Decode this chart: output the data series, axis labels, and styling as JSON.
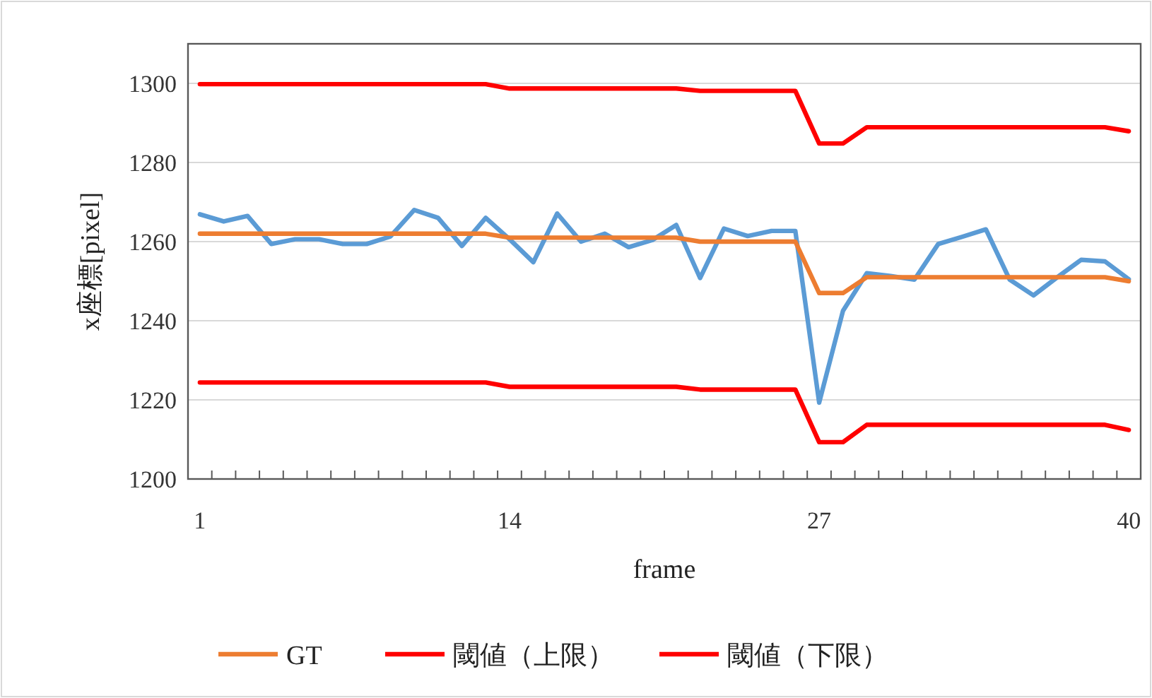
{
  "chart_data": {
    "type": "line",
    "xlabel": "frame",
    "ylabel": "x座標[pixel]",
    "categories": [
      "1",
      null,
      null,
      null,
      null,
      null,
      null,
      null,
      null,
      null,
      null,
      null,
      null,
      "14",
      null,
      null,
      null,
      null,
      null,
      null,
      null,
      null,
      null,
      null,
      null,
      null,
      "27",
      null,
      null,
      null,
      null,
      null,
      null,
      null,
      null,
      null,
      null,
      null,
      null,
      "40"
    ],
    "ylim": [
      1200,
      1310
    ],
    "yticks": [
      1200,
      1220,
      1240,
      1260,
      1280,
      1300
    ],
    "grid": "y",
    "legend": "bottom",
    "marker": "none",
    "line_style": "solid",
    "series": [
      {
        "color": "#5b9bd5",
        "values": [
          1266.9,
          1265.1,
          1266.5,
          1259.4,
          1260.6,
          1260.6,
          1259.4,
          1259.4,
          1261.3,
          1268,
          1266,
          1258.9,
          1266,
          1260.6,
          1254.8,
          1267.1,
          1260,
          1262,
          1258.6,
          1260.4,
          1264.2,
          1250.8,
          1263.3,
          1261.4,
          1262.7,
          1262.7,
          1219.3,
          1242.5,
          1252,
          1251.3,
          1250.4,
          1259.4,
          1261.2,
          1263.1,
          1250.4,
          1246.4,
          1251,
          1255.4,
          1255,
          1250.5
        ]
      },
      {
        "name": "GT",
        "color": "#ed7d31",
        "values": [
          1262,
          1262,
          1262,
          1262,
          1262,
          1262,
          1262,
          1262,
          1262,
          1262,
          1262,
          1262,
          1262,
          1261,
          1261,
          1261,
          1261,
          1261,
          1261,
          1261,
          1261,
          1260,
          1260,
          1260,
          1260,
          1260,
          1247,
          1247,
          1251,
          1251,
          1251,
          1251,
          1251,
          1251,
          1251,
          1251,
          1251,
          1251,
          1251,
          1250
        ]
      },
      {
        "name": "閾値（上限）",
        "color": "#ff0000",
        "values": [
          1299.8,
          1299.8,
          1299.8,
          1299.8,
          1299.8,
          1299.8,
          1299.8,
          1299.8,
          1299.8,
          1299.8,
          1299.8,
          1299.8,
          1299.8,
          1298.7,
          1298.7,
          1298.7,
          1298.7,
          1298.7,
          1298.7,
          1298.7,
          1298.7,
          1298.1,
          1298.1,
          1298.1,
          1298.1,
          1298.1,
          1284.8,
          1284.8,
          1288.9,
          1288.9,
          1288.9,
          1288.9,
          1288.9,
          1288.9,
          1288.9,
          1288.9,
          1288.9,
          1288.9,
          1288.9,
          1287.9
        ]
      },
      {
        "name": "閾値（下限）",
        "color": "#ff0000",
        "values": [
          1224.4,
          1224.4,
          1224.4,
          1224.4,
          1224.4,
          1224.4,
          1224.4,
          1224.4,
          1224.4,
          1224.4,
          1224.4,
          1224.4,
          1224.4,
          1223.3,
          1223.3,
          1223.3,
          1223.3,
          1223.3,
          1223.3,
          1223.3,
          1223.3,
          1222.6,
          1222.6,
          1222.6,
          1222.6,
          1222.6,
          1209.3,
          1209.3,
          1213.7,
          1213.7,
          1213.7,
          1213.7,
          1213.7,
          1213.7,
          1213.7,
          1213.7,
          1213.7,
          1213.7,
          1213.7,
          1212.4
        ]
      }
    ]
  }
}
